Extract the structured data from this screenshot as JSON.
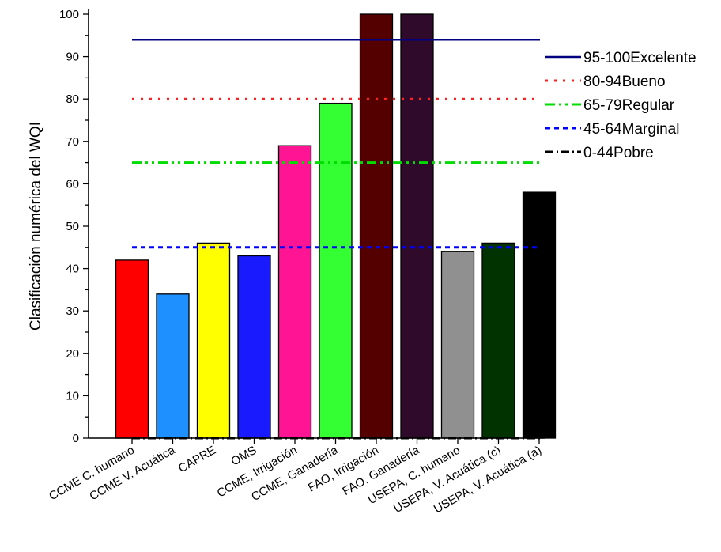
{
  "chart_data": {
    "type": "bar",
    "ylabel": "Clasificación numérica del WQI",
    "xlabel": "",
    "ylim": [
      0,
      100
    ],
    "yticks": [
      0,
      10,
      20,
      30,
      40,
      50,
      60,
      70,
      80,
      90,
      100
    ],
    "categories": [
      "CCME C. humano",
      "CCME V. Acuática",
      "CAPRE",
      "OMS",
      "CCME, Irrigación",
      "CCME, Ganadería",
      "FAO, Irrigación",
      "FAO, Ganadería",
      "USEPA, C. humano",
      "USEPA, V. Acuática (c)",
      "USEPA, V. Acuática (a)"
    ],
    "values": [
      42,
      34,
      46,
      43,
      69,
      79,
      100,
      100,
      44,
      46,
      58
    ],
    "bar_colors": [
      "#ff0000",
      "#1e90ff",
      "#ffff00",
      "#1a1aff",
      "#ff1493",
      "#33ff33",
      "#550000",
      "#300a2a",
      "#909090",
      "#003300",
      "#000000"
    ],
    "reference_lines": [
      {
        "label": "95-100Excelente",
        "value": 94,
        "color": "#000080",
        "style": "solid"
      },
      {
        "label": "80-94Bueno",
        "value": 80,
        "color": "#ff2020",
        "style": "dot"
      },
      {
        "label": "65-79Regular",
        "value": 65,
        "color": "#00dd00",
        "style": "dashdotdot"
      },
      {
        "label": "45-64Marginal",
        "value": 45,
        "color": "#0000ff",
        "style": "dash"
      },
      {
        "label": "0-44Pobre",
        "value": 0,
        "color": "#000000",
        "style": "dashdot"
      }
    ],
    "legend_position": "right",
    "grid": false
  }
}
